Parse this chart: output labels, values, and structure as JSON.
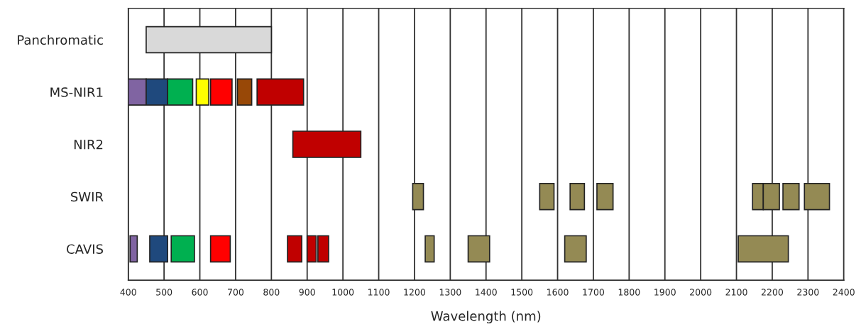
{
  "chart_data": {
    "type": "bar",
    "orientation": "horizontal",
    "xlabel": "Wavelength (nm)",
    "categories": [
      "Panchromatic",
      "MS-NIR1",
      "NIR2",
      "SWIR",
      "CAVIS"
    ],
    "xlim": [
      400,
      2400
    ],
    "xticks": [
      400,
      500,
      600,
      700,
      800,
      900,
      1000,
      1100,
      1200,
      1300,
      1400,
      1500,
      1600,
      1700,
      1800,
      1900,
      2000,
      2100,
      2200,
      2300,
      2400
    ],
    "grid": "x",
    "series": [
      {
        "base": [
          450,
          400,
          860,
          1195,
          405
        ],
        "values": [
          350,
          50,
          190,
          30,
          20
        ],
        "colors": [
          "#d9d9d9",
          "#8064a2",
          "#c00000",
          "#948a54",
          "#8064a2"
        ]
      },
      {
        "base": [
          null,
          450,
          null,
          1550,
          460
        ],
        "values": [
          null,
          60,
          null,
          40,
          50
        ],
        "colors": [
          "#d9d9d9",
          "#1f497d",
          "#c00000",
          "#948a54",
          "#1f497d"
        ]
      },
      {
        "base": [
          null,
          510,
          null,
          1635,
          520
        ],
        "values": [
          null,
          70,
          null,
          40,
          65
        ],
        "colors": [
          "#d9d9d9",
          "#00b050",
          "#c00000",
          "#948a54",
          "#00b050"
        ]
      },
      {
        "base": [
          null,
          590,
          null,
          1710,
          630
        ],
        "values": [
          null,
          35,
          null,
          45,
          55
        ],
        "colors": [
          "#d9d9d9",
          "#ffff00",
          "#c00000",
          "#948a54",
          "#ff0000"
        ]
      },
      {
        "base": [
          null,
          630,
          null,
          2145,
          845
        ],
        "values": [
          null,
          60,
          null,
          30,
          40
        ],
        "colors": [
          "#d9d9d9",
          "#ff0000",
          "#c00000",
          "#948a54",
          "#c00000"
        ]
      },
      {
        "base": [
          null,
          705,
          null,
          2175,
          900
        ],
        "values": [
          null,
          40,
          null,
          45,
          25
        ],
        "colors": [
          "#d9d9d9",
          "#984807",
          "#c00000",
          "#948a54",
          "#c00000"
        ]
      },
      {
        "base": [
          null,
          760,
          null,
          2230,
          930
        ],
        "values": [
          null,
          130,
          null,
          45,
          30
        ],
        "colors": [
          "#d9d9d9",
          "#c00000",
          "#c00000",
          "#948a54",
          "#c00000"
        ]
      },
      {
        "base": [
          null,
          null,
          null,
          2290,
          1230
        ],
        "values": [
          null,
          null,
          null,
          70,
          25
        ],
        "colors": [
          "#d9d9d9",
          "#c00000",
          "#c00000",
          "#948a54",
          "#948a54"
        ]
      },
      {
        "base": [
          null,
          null,
          null,
          null,
          1350
        ],
        "values": [
          null,
          null,
          null,
          null,
          60
        ],
        "colors": [
          "#d9d9d9",
          "#c00000",
          "#c00000",
          "#948a54",
          "#948a54"
        ]
      },
      {
        "base": [
          null,
          null,
          null,
          null,
          1620
        ],
        "values": [
          null,
          null,
          null,
          null,
          60
        ],
        "colors": [
          "#d9d9d9",
          "#c00000",
          "#c00000",
          "#948a54",
          "#948a54"
        ]
      },
      {
        "base": [
          null,
          null,
          null,
          null,
          2105
        ],
        "values": [
          null,
          null,
          null,
          null,
          140
        ],
        "colors": [
          "#d9d9d9",
          "#c00000",
          "#c00000",
          "#948a54",
          "#948a54"
        ]
      }
    ]
  }
}
